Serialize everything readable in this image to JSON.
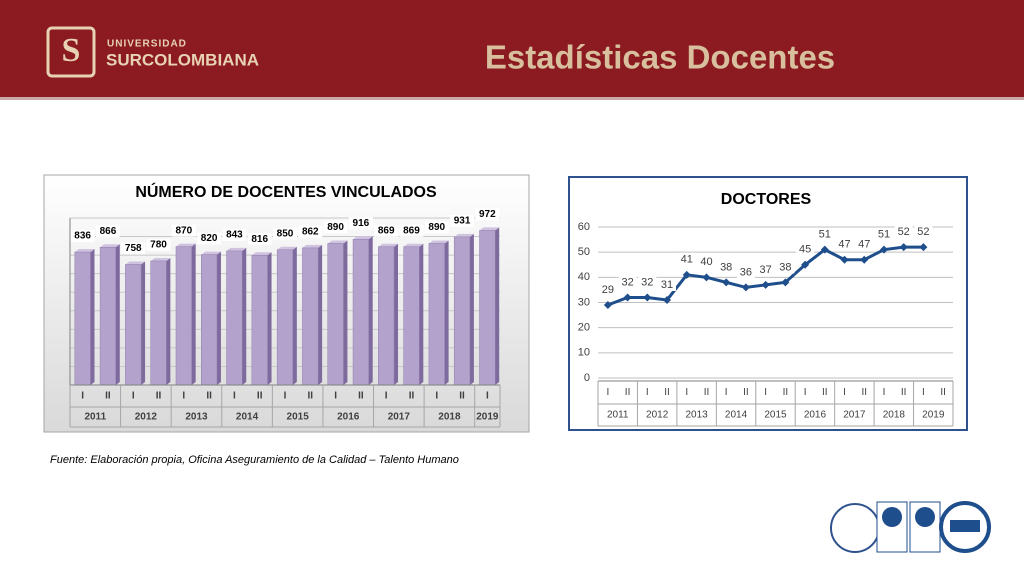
{
  "header": {
    "logo_top": "UNIVERSIDAD",
    "logo_name": "SURCOLOMBIANA",
    "title": "Estadísticas Docentes"
  },
  "footer": {
    "source": "Fuente: Elaboración propia, Oficina Aseguramiento de la Calidad – Talento Humano"
  },
  "chart_data": [
    {
      "type": "bar",
      "title": "NÚMERO DE DOCENTES VINCULADOS",
      "categories": [
        "I",
        "II",
        "I",
        "II",
        "I",
        "II",
        "I",
        "II",
        "I",
        "II",
        "I",
        "II",
        "I",
        "II",
        "I",
        "II",
        "I"
      ],
      "groups": [
        "2011",
        "2012",
        "2013",
        "2014",
        "2015",
        "2016",
        "2017",
        "2018",
        "2019"
      ],
      "values": [
        836,
        866,
        758,
        780,
        870,
        820,
        843,
        816,
        850,
        862,
        890,
        916,
        869,
        869,
        890,
        931,
        972
      ],
      "color": "#b3a2cc",
      "ylim": [
        0,
        1050
      ]
    },
    {
      "type": "line",
      "title": "DOCTORES",
      "categories": [
        "I",
        "II",
        "I",
        "II",
        "I",
        "II",
        "I",
        "II",
        "I",
        "II",
        "I",
        "II",
        "I",
        "II",
        "I",
        "II",
        "I",
        "II"
      ],
      "groups": [
        "2011",
        "2012",
        "2013",
        "2014",
        "2015",
        "2016",
        "2017",
        "2018",
        "2019"
      ],
      "values": [
        29,
        32,
        32,
        31,
        41,
        40,
        38,
        36,
        37,
        38,
        45,
        51,
        47,
        47,
        51,
        52,
        52,
        null
      ],
      "color": "#1f4e8c",
      "ylim": [
        0,
        60
      ],
      "yticks": [
        0,
        10,
        20,
        30,
        40,
        50,
        60
      ],
      "grid": true
    }
  ]
}
